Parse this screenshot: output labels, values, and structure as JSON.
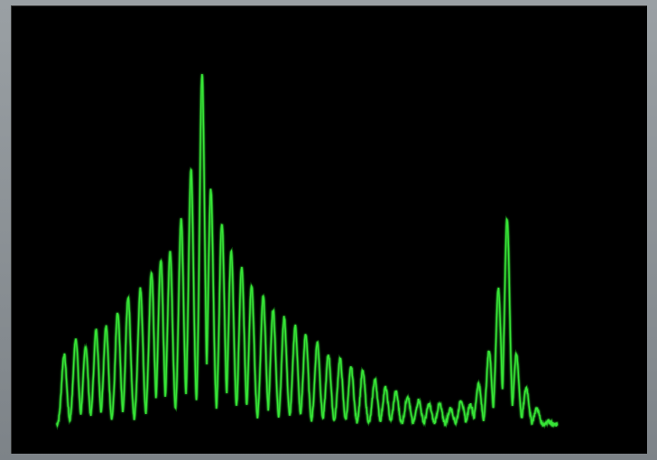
{
  "colors": {
    "trace": "#37e637",
    "trace_glow": "#1a8a1a",
    "background": "#000000",
    "bezel": "#8a9095"
  },
  "chart_data": {
    "type": "line",
    "title": "",
    "xlabel": "",
    "ylabel": "",
    "grid": false,
    "legend": "none",
    "xlim": [
      0,
      100
    ],
    "ylim": [
      0,
      100
    ],
    "baseline": 3,
    "peaks": [
      {
        "x": 2.8,
        "y": 20
      },
      {
        "x": 4.8,
        "y": 24
      },
      {
        "x": 6.5,
        "y": 22
      },
      {
        "x": 8.3,
        "y": 26
      },
      {
        "x": 10.0,
        "y": 27
      },
      {
        "x": 12.0,
        "y": 30
      },
      {
        "x": 13.8,
        "y": 34
      },
      {
        "x": 15.9,
        "y": 36
      },
      {
        "x": 17.8,
        "y": 40
      },
      {
        "x": 19.4,
        "y": 43
      },
      {
        "x": 21.0,
        "y": 45
      },
      {
        "x": 22.9,
        "y": 53
      },
      {
        "x": 24.6,
        "y": 65
      },
      {
        "x": 26.5,
        "y": 84
      },
      {
        "x": 28.0,
        "y": 60
      },
      {
        "x": 29.9,
        "y": 52
      },
      {
        "x": 31.5,
        "y": 45
      },
      {
        "x": 33.3,
        "y": 41
      },
      {
        "x": 35.0,
        "y": 37
      },
      {
        "x": 37.0,
        "y": 34
      },
      {
        "x": 38.7,
        "y": 31
      },
      {
        "x": 40.6,
        "y": 29
      },
      {
        "x": 42.5,
        "y": 27
      },
      {
        "x": 44.3,
        "y": 25
      },
      {
        "x": 46.3,
        "y": 23
      },
      {
        "x": 48.2,
        "y": 20
      },
      {
        "x": 50.2,
        "y": 19
      },
      {
        "x": 52.1,
        "y": 17
      },
      {
        "x": 54.1,
        "y": 16
      },
      {
        "x": 56.2,
        "y": 14
      },
      {
        "x": 58.0,
        "y": 12
      },
      {
        "x": 59.8,
        "y": 11
      },
      {
        "x": 61.8,
        "y": 10
      },
      {
        "x": 63.7,
        "y": 9
      },
      {
        "x": 65.5,
        "y": 8
      },
      {
        "x": 67.3,
        "y": 8
      },
      {
        "x": 69.2,
        "y": 7
      },
      {
        "x": 71.0,
        "y": 9
      },
      {
        "x": 72.6,
        "y": 8
      },
      {
        "x": 74.0,
        "y": 13
      },
      {
        "x": 75.8,
        "y": 21
      },
      {
        "x": 77.4,
        "y": 36
      },
      {
        "x": 78.9,
        "y": 49
      },
      {
        "x": 80.5,
        "y": 20
      },
      {
        "x": 82.2,
        "y": 12
      },
      {
        "x": 84.0,
        "y": 7
      },
      {
        "x": 86.0,
        "y": 4
      }
    ],
    "envelope_peaks": [
      {
        "x": 26.5,
        "y": 88
      },
      {
        "x": 78.9,
        "y": 53
      }
    ]
  }
}
